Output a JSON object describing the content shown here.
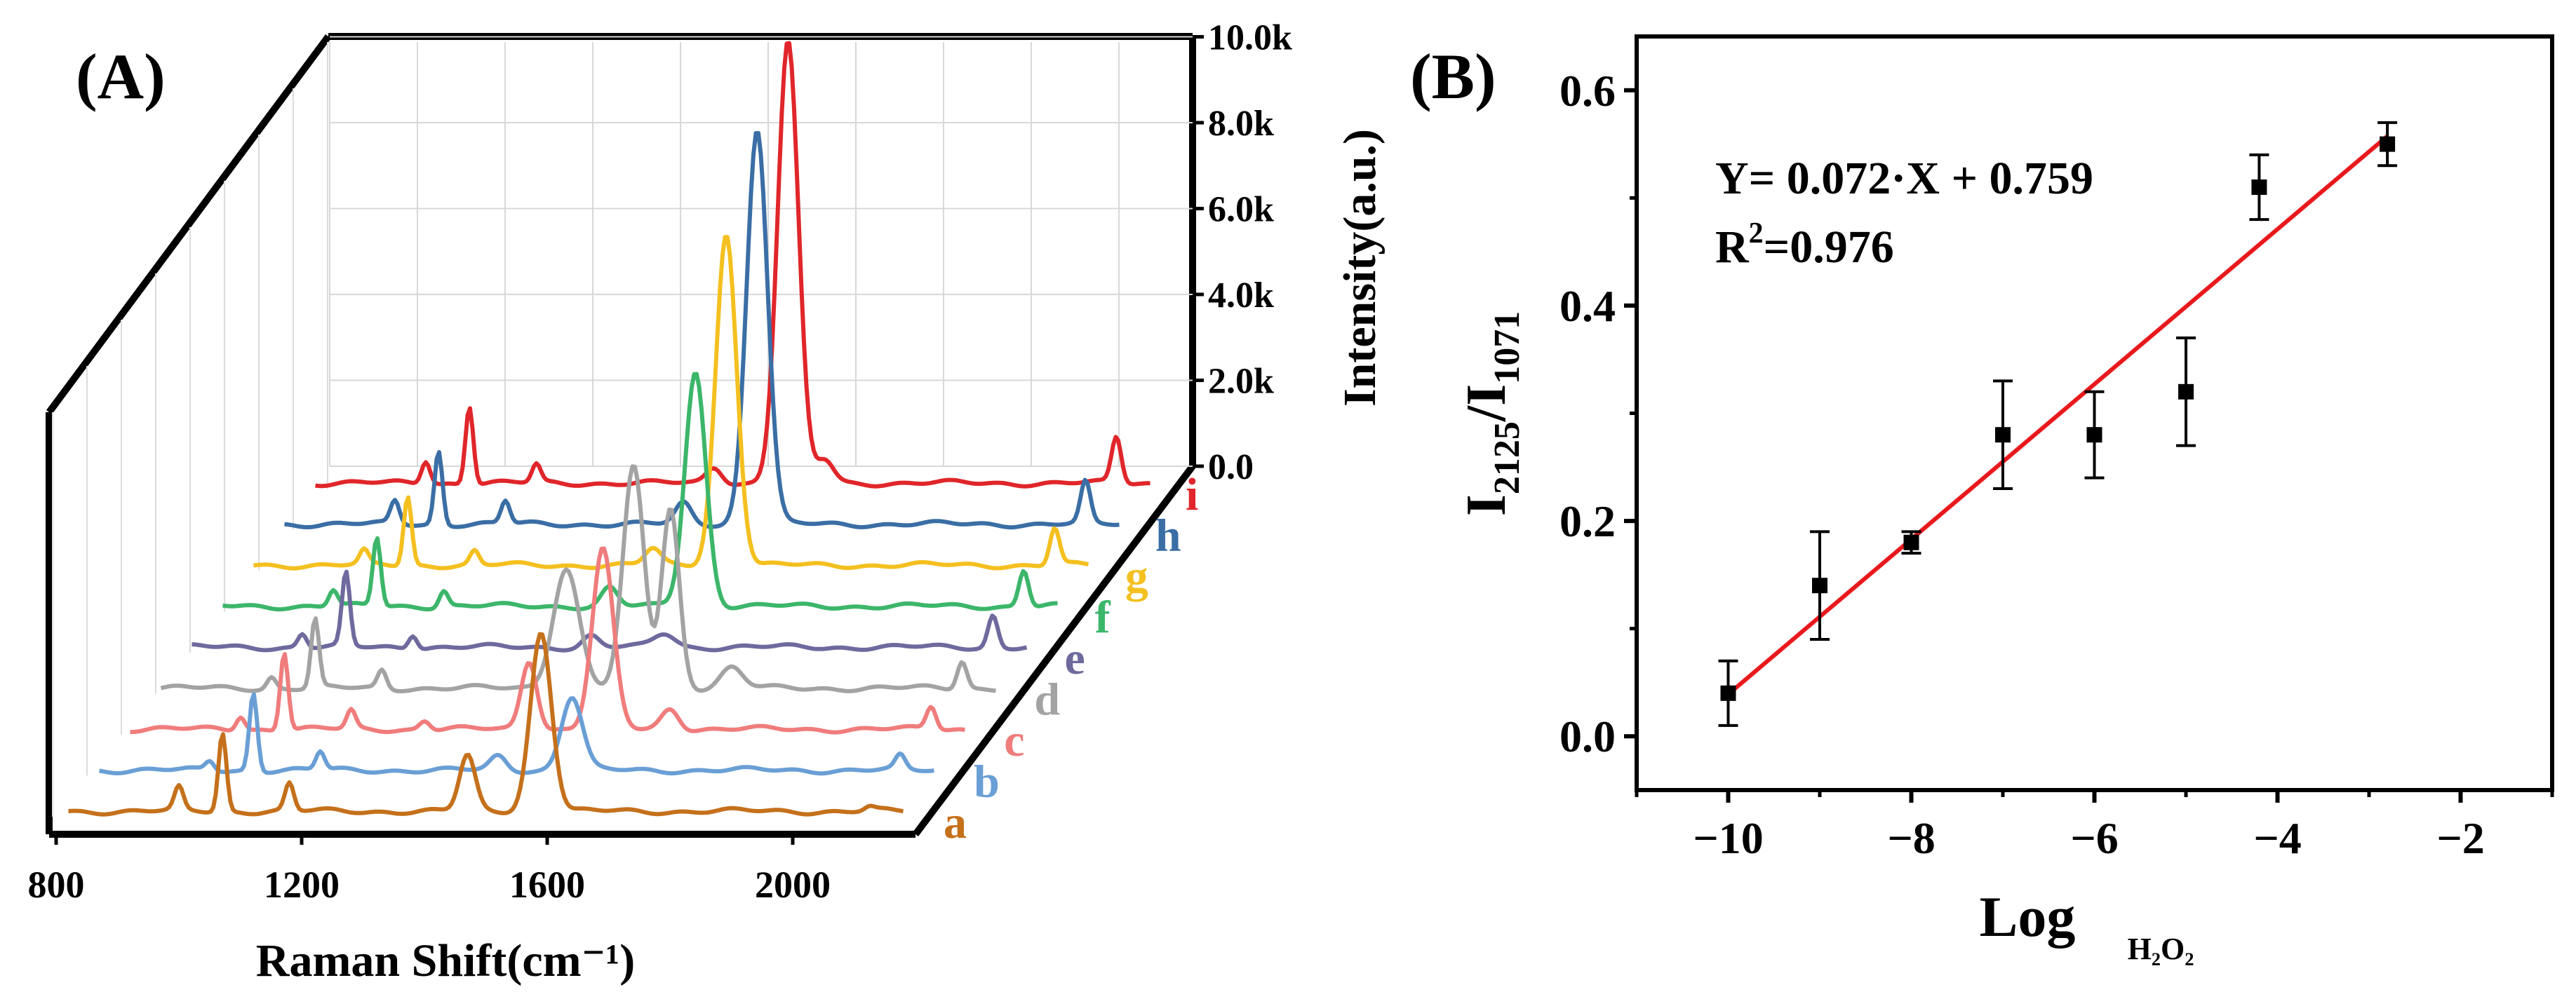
{
  "chart_data": [
    {
      "panel_label": "(A)",
      "type": "line",
      "subtype": "waterfall-3d",
      "title": "",
      "xlabel": "Raman Shift(cm⁻¹)",
      "zlabel": "Intensity(a.u.)",
      "xticks": [
        "800",
        "1200",
        "1600",
        "2000"
      ],
      "xlim": [
        800,
        2200
      ],
      "zticks": [
        "0.0",
        "2.0k",
        "4.0k",
        "6.0k",
        "8.0k",
        "10.0k"
      ],
      "zlim": [
        0,
        10000
      ],
      "series_colors": [
        "#c5701b",
        "#6a9fd6",
        "#f07c7c",
        "#a3a3a3",
        "#6e6a9e",
        "#3cb66a",
        "#f4c020",
        "#3a6ea5",
        "#e0262a"
      ],
      "series": [
        {
          "name": "a",
          "color": "#c5701b",
          "peaks": [
            [
              1000,
              500
            ],
            [
              1071,
              1700
            ],
            [
              1180,
              600
            ],
            [
              1470,
              1200
            ],
            [
              1590,
              3900
            ],
            [
              2125,
              80
            ]
          ]
        },
        {
          "name": "b",
          "color": "#6a9fd6",
          "peaks": [
            [
              1000,
              200
            ],
            [
              1071,
              1700
            ],
            [
              1180,
              400
            ],
            [
              1470,
              300
            ],
            [
              1590,
              1600
            ],
            [
              2125,
              300
            ]
          ]
        },
        {
          "name": "c",
          "color": "#f07c7c",
          "peaks": [
            [
              1000,
              300
            ],
            [
              1071,
              1700
            ],
            [
              1180,
              400
            ],
            [
              1300,
              200
            ],
            [
              1470,
              1500
            ],
            [
              1590,
              3900
            ],
            [
              1700,
              450
            ],
            [
              2125,
              500
            ]
          ]
        },
        {
          "name": "d",
          "color": "#a3a3a3",
          "peaks": [
            [
              1000,
              250
            ],
            [
              1071,
              1500
            ],
            [
              1180,
              400
            ],
            [
              1480,
              2600
            ],
            [
              1590,
              4800
            ],
            [
              1650,
              3900
            ],
            [
              1750,
              450
            ],
            [
              2125,
              600
            ]
          ]
        },
        {
          "name": "e",
          "color": "#6e6a9e",
          "peaks": [
            [
              1000,
              300
            ],
            [
              1071,
              1600
            ],
            [
              1180,
              300
            ],
            [
              1470,
              250
            ],
            [
              1590,
              300
            ],
            [
              2125,
              700
            ]
          ]
        },
        {
          "name": "f",
          "color": "#3cb66a",
          "peaks": [
            [
              1000,
              350
            ],
            [
              1071,
              1500
            ],
            [
              1180,
              350
            ],
            [
              1450,
              400
            ],
            [
              1590,
              5100
            ],
            [
              2125,
              800
            ]
          ]
        },
        {
          "name": "g",
          "color": "#f4c020",
          "peaks": [
            [
              1000,
              300
            ],
            [
              1071,
              1500
            ],
            [
              1180,
              300
            ],
            [
              1470,
              350
            ],
            [
              1590,
              7200
            ],
            [
              2125,
              800
            ]
          ]
        },
        {
          "name": "h",
          "color": "#3a6ea5",
          "peaks": [
            [
              1000,
              500
            ],
            [
              1071,
              1600
            ],
            [
              1180,
              500
            ],
            [
              1470,
              450
            ],
            [
              1590,
              8600
            ],
            [
              2125,
              900
            ]
          ]
        },
        {
          "name": "i",
          "color": "#e0262a",
          "peaks": [
            [
              1000,
              500
            ],
            [
              1071,
              1700
            ],
            [
              1180,
              400
            ],
            [
              1470,
              350
            ],
            [
              1590,
              9600
            ],
            [
              1650,
              500
            ],
            [
              2125,
              1000
            ]
          ]
        }
      ]
    },
    {
      "panel_label": "(B)",
      "type": "scatter",
      "title": "",
      "xlabel": "Log",
      "xlabel_subscript": "H₂O₂",
      "ylabel_main": "I",
      "ylabel_sub1": "2125",
      "ylabel_mid": "/I",
      "ylabel_sub2": "1071",
      "xlim": [
        -11,
        -1
      ],
      "ylim": [
        -0.05,
        0.65
      ],
      "xticks": [
        -10,
        -8,
        -6,
        -4,
        -2
      ],
      "xtick_labels": [
        "−10",
        "−8",
        "−6",
        "−4",
        "−2"
      ],
      "yticks": [
        0.0,
        0.2,
        0.4,
        0.6
      ],
      "ytick_labels": [
        "0.0",
        "0.2",
        "0.4",
        "0.6"
      ],
      "points": [
        {
          "x": -10,
          "y": 0.04,
          "err": 0.03
        },
        {
          "x": -9,
          "y": 0.14,
          "err": 0.05
        },
        {
          "x": -8,
          "y": 0.18,
          "err": 0.01
        },
        {
          "x": -7,
          "y": 0.28,
          "err": 0.05
        },
        {
          "x": -6,
          "y": 0.28,
          "err": 0.04
        },
        {
          "x": -5,
          "y": 0.32,
          "err": 0.05
        },
        {
          "x": -4.2,
          "y": 0.51,
          "err": 0.03
        },
        {
          "x": -2.8,
          "y": 0.55,
          "err": 0.02
        }
      ],
      "fit": {
        "slope": 0.072,
        "intercept": 0.759,
        "x_range": [
          -10,
          -2.8
        ],
        "color": "#e8191d"
      },
      "equation": "Y= 0.072·X + 0.759",
      "r2_prefix": "R",
      "r2_sup": "2",
      "r2_value": "=0.976"
    }
  ]
}
